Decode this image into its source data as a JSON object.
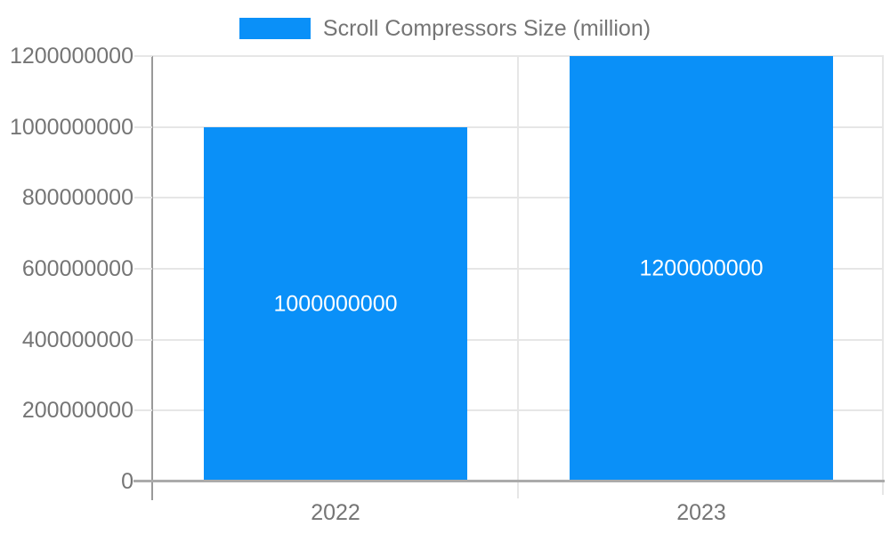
{
  "legend": {
    "label": "Scroll Compressors Size (million)"
  },
  "colors": {
    "bar": "#0a90f8",
    "bar_label_text": "#ffffff",
    "tick_label_text": "#757575",
    "legend_text": "#757575",
    "gridline": "#e6e6e6",
    "x_axis_line": "#ababab",
    "y_axis_line": "#999999",
    "background": "#ffffff"
  },
  "chart_data": {
    "type": "bar",
    "categories": [
      "2022",
      "2023"
    ],
    "series": [
      {
        "name": "Scroll Compressors Size (million)",
        "values": [
          1000000000,
          1200000000
        ]
      }
    ],
    "bar_labels": [
      "1000000000",
      "1200000000"
    ],
    "title": "",
    "xlabel": "",
    "ylabel": "",
    "ylim": [
      0,
      1200000000
    ],
    "yticks": [
      0,
      200000000,
      400000000,
      600000000,
      800000000,
      1000000000,
      1200000000
    ],
    "ytick_labels": [
      "0",
      "200000000",
      "400000000",
      "600000000",
      "800000000",
      "1000000000",
      "1200000000"
    ],
    "grid": true,
    "legend_position": "top"
  }
}
